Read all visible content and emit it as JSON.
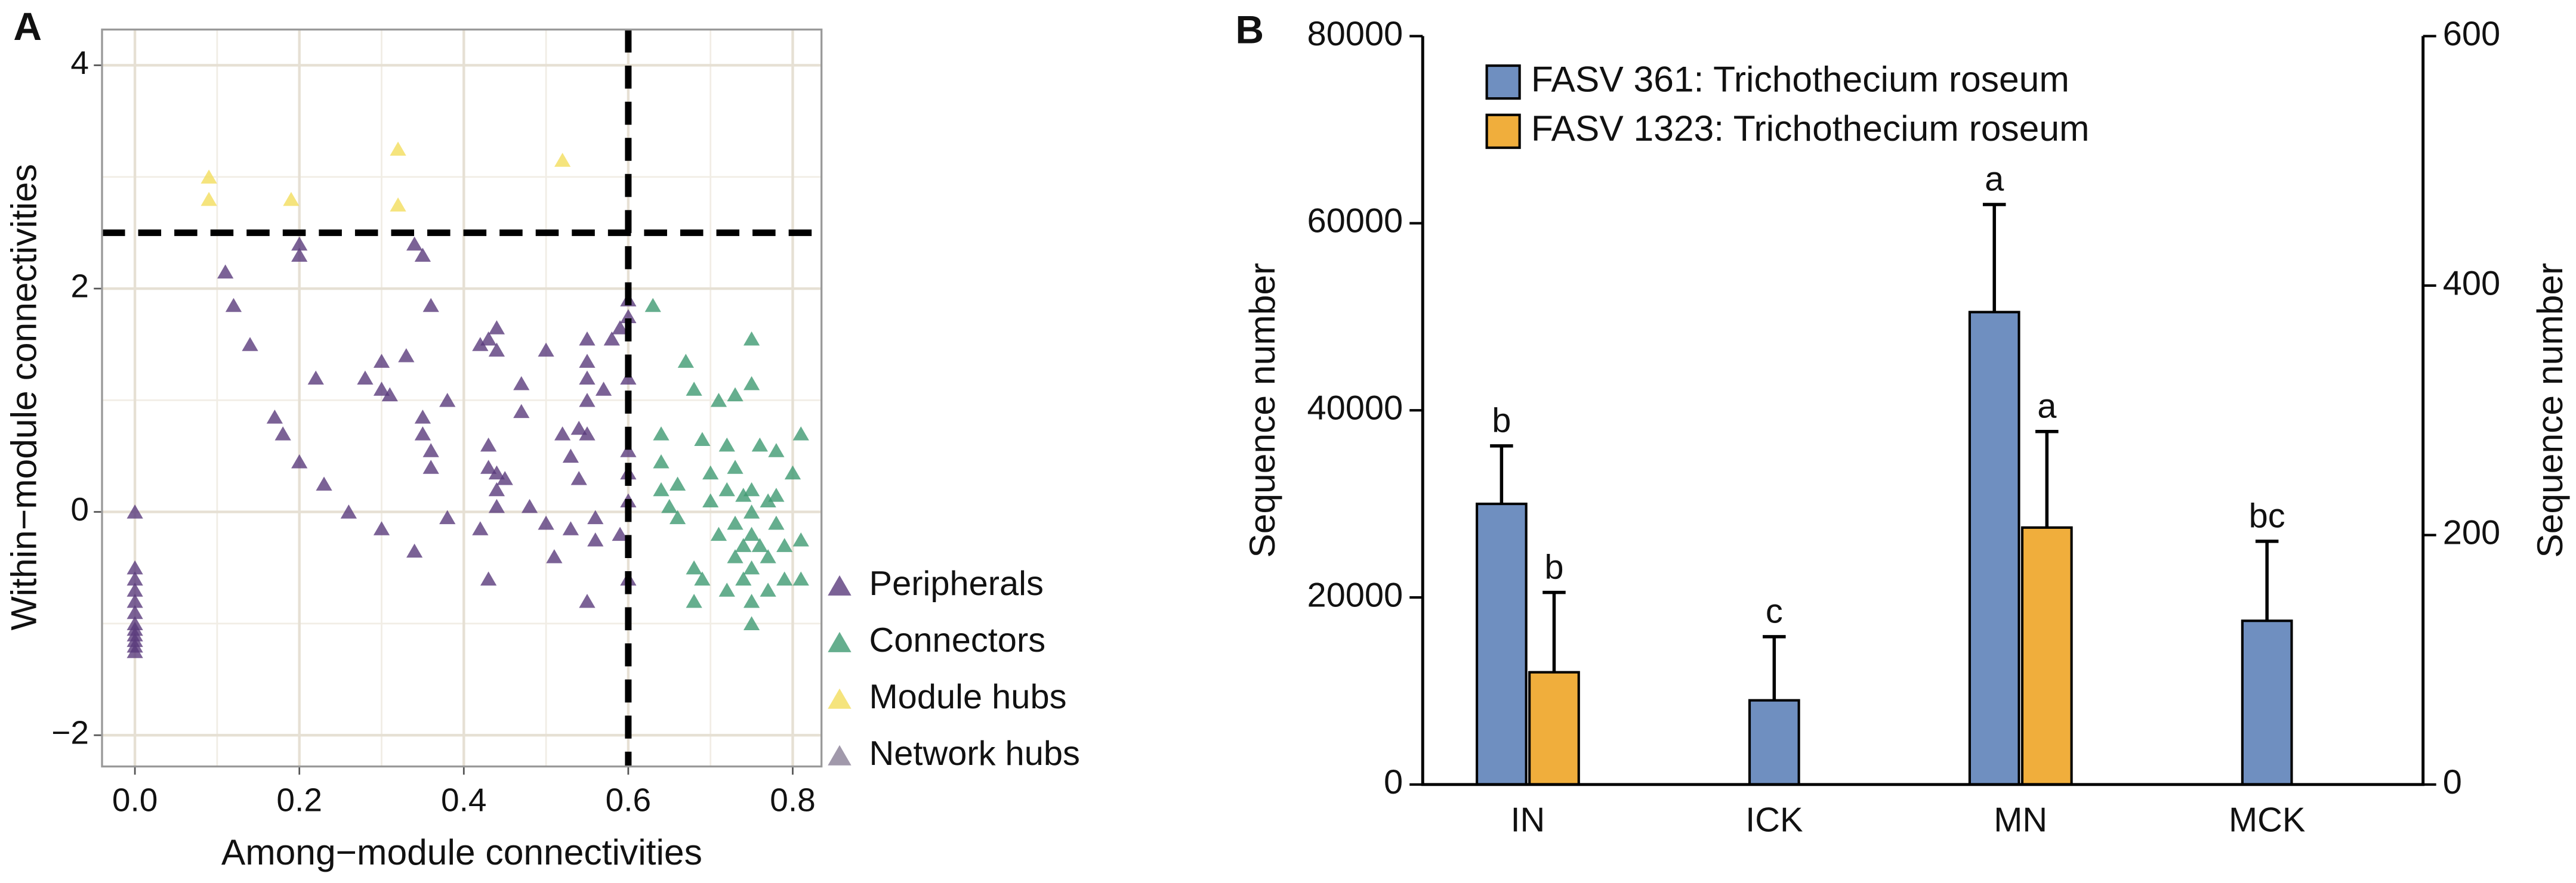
{
  "chart_data": [
    {
      "type": "scatter",
      "panel": "A",
      "x_label": "Among−module connectivities",
      "y_label": "Within−module connectivities",
      "xlim": [
        -0.04,
        0.835
      ],
      "ylim": [
        -2.28,
        4.32
      ],
      "xticks": [
        {
          "value": 0,
          "label": "0.0"
        },
        0.2,
        0.4,
        0.6,
        0.8
      ],
      "yticks": [
        {
          "value": -2,
          "label": "−2"
        },
        0,
        2,
        4
      ],
      "x_minor_ticks": [
        0.1,
        0.3,
        0.5,
        0.7
      ],
      "y_minor_ticks": [
        -1,
        1,
        3
      ],
      "grid": true,
      "legend": "right",
      "reference_lines": {
        "x": 0.6,
        "y": 2.5
      },
      "series": [
        {
          "name": "Peripherals",
          "color": "#5a3b7c",
          "x": [
            0,
            0,
            0,
            0,
            0,
            0,
            0,
            0,
            0,
            0,
            0,
            0,
            0.11,
            0.12,
            0.14,
            0.17,
            0.18,
            0.2,
            0.2,
            0.2,
            0.22,
            0.23,
            0.26,
            0.28,
            0.3,
            0.3,
            0.3,
            0.31,
            0.33,
            0.34,
            0.35,
            0.36,
            0.35,
            0.35,
            0.36,
            0.36,
            0.34,
            0.38,
            0.38,
            0.42,
            0.43,
            0.44,
            0.44,
            0.43,
            0.43,
            0.44,
            0.44,
            0.44,
            0.45,
            0.42,
            0.43,
            0.47,
            0.47,
            0.48,
            0.5,
            0.5,
            0.51,
            0.52,
            0.53,
            0.53,
            0.54,
            0.54,
            0.55,
            0.55,
            0.55,
            0.55,
            0.55,
            0.56,
            0.56,
            0.55,
            0.57,
            0.58,
            0.59,
            0.6,
            0.6,
            0.6,
            0.6,
            0.6,
            0.59,
            0.6,
            0.6
          ],
          "y": [
            0,
            -0.5,
            -0.6,
            -0.7,
            -0.8,
            -0.9,
            -1.0,
            -1.05,
            -1.1,
            -1.15,
            -1.2,
            -1.25,
            2.15,
            1.85,
            1.5,
            0.85,
            0.7,
            2.4,
            2.3,
            0.45,
            1.2,
            0.25,
            0.0,
            1.2,
            1.35,
            1.1,
            -0.15,
            1.05,
            1.4,
            2.4,
            2.3,
            1.85,
            0.85,
            0.7,
            0.55,
            0.4,
            -0.35,
            1.0,
            -0.05,
            1.5,
            1.55,
            1.65,
            1.45,
            0.6,
            0.4,
            0.35,
            0.2,
            0.05,
            0.3,
            -0.15,
            -0.6,
            1.15,
            0.9,
            0.05,
            1.45,
            -0.1,
            -0.4,
            0.7,
            0.5,
            -0.15,
            0.75,
            0.3,
            1.55,
            1.35,
            1.2,
            1.0,
            0.7,
            -0.05,
            -0.25,
            -0.8,
            1.1,
            1.55,
            1.65,
            1.9,
            1.75,
            0.55,
            0.35,
            0.1,
            -0.2,
            -0.6,
            1.2
          ]
        },
        {
          "name": "Connectors",
          "color": "#3f9a72",
          "x": [
            0.63,
            0.64,
            0.64,
            0.64,
            0.65,
            0.66,
            0.66,
            0.67,
            0.68,
            0.68,
            0.68,
            0.69,
            0.69,
            0.7,
            0.7,
            0.71,
            0.71,
            0.72,
            0.72,
            0.72,
            0.73,
            0.73,
            0.73,
            0.73,
            0.74,
            0.74,
            0.74,
            0.75,
            0.75,
            0.75,
            0.75,
            0.75,
            0.75,
            0.75,
            0.75,
            0.76,
            0.76,
            0.77,
            0.77,
            0.77,
            0.78,
            0.78,
            0.78,
            0.79,
            0.79,
            0.8,
            0.81,
            0.81,
            0.81
          ],
          "y": [
            1.85,
            0.7,
            0.45,
            0.2,
            0.05,
            0.25,
            -0.05,
            1.35,
            1.1,
            -0.5,
            -0.8,
            -0.6,
            0.65,
            0.35,
            0.1,
            1.0,
            -0.2,
            0.6,
            -0.7,
            0.2,
            1.05,
            0.4,
            -0.4,
            -0.1,
            0.15,
            -0.3,
            -0.6,
            1.55,
            1.15,
            0.2,
            0.0,
            -0.2,
            -0.5,
            -0.8,
            -1.0,
            0.6,
            -0.3,
            0.1,
            -0.4,
            -0.7,
            0.55,
            0.15,
            -0.1,
            -0.3,
            -0.6,
            0.35,
            0.7,
            -0.25,
            -0.6
          ]
        },
        {
          "name": "Module hubs",
          "color": "#f2dd5c",
          "x": [
            0.09,
            0.09,
            0.19,
            0.32,
            0.32,
            0.52
          ],
          "y": [
            3.0,
            2.8,
            2.8,
            3.25,
            2.75,
            3.15
          ]
        },
        {
          "name": "Network hubs",
          "color": "#8a7f96",
          "x": [],
          "y": []
        }
      ]
    },
    {
      "type": "bar",
      "panel": "B",
      "y_label": "Sequence number",
      "y2_label": "Sequence number",
      "categories": [
        "IN",
        "ICK",
        "MN",
        "MCK"
      ],
      "ylim": [
        0,
        80000
      ],
      "yticks": [
        0,
        20000,
        40000,
        60000,
        80000
      ],
      "y2lim": [
        0,
        600
      ],
      "y2ticks": [
        0,
        200,
        400,
        600
      ],
      "legend": "top-left",
      "series": [
        {
          "name": "FASV 361: Trichothecium roseum",
          "color": "#6f8fc0",
          "values": [
            30000,
            9000,
            50500,
            17500
          ],
          "errors": [
            6200,
            6800,
            11500,
            8500
          ],
          "letters": [
            "b",
            "c",
            "a",
            "bc"
          ]
        },
        {
          "name": "FASV 1323: Trichothecium roseum",
          "color": "#f0ae3c",
          "axis": "y2",
          "values": [
            90,
            null,
            206,
            null
          ],
          "errors": [
            64,
            null,
            77,
            null
          ],
          "letters": [
            "b",
            null,
            "a",
            null
          ]
        }
      ]
    }
  ]
}
